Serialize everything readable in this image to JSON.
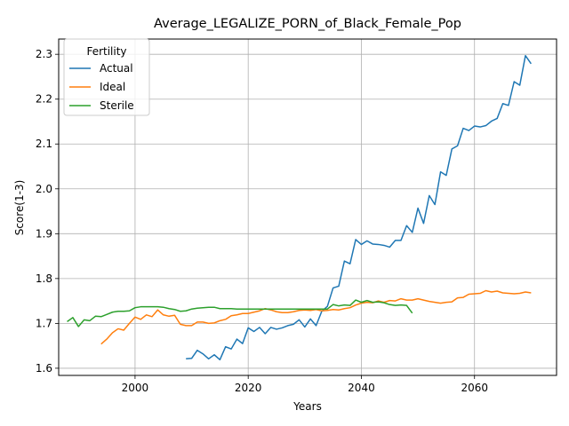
{
  "chart_data": {
    "type": "line",
    "title": "Average_LEGALIZE_PORN_of_Black_Female_Pop",
    "xlabel": "Years",
    "ylabel": "Score(1-3)",
    "xlim": [
      1986.5,
      2074.5
    ],
    "ylim": [
      1.584,
      2.334
    ],
    "xticks": [
      2000,
      2020,
      2040,
      2060
    ],
    "yticks": [
      1.6,
      1.7,
      1.8,
      1.9,
      2.0,
      2.1,
      2.2,
      2.3
    ],
    "grid": true,
    "legend": {
      "title": "Fertility",
      "placement": "top-left"
    },
    "series": [
      {
        "name": "Actual",
        "color": "#1f77b4",
        "x": [
          2009,
          2010,
          2011,
          2012,
          2013,
          2014,
          2015,
          2016,
          2017,
          2018,
          2019,
          2020,
          2021,
          2022,
          2023,
          2024,
          2025,
          2026,
          2027,
          2028,
          2029,
          2030,
          2031,
          2032,
          2033,
          2034,
          2035,
          2036,
          2037,
          2038,
          2039,
          2040,
          2041,
          2042,
          2043,
          2044,
          2045,
          2046,
          2047,
          2048,
          2049,
          2050,
          2051,
          2052,
          2053,
          2054,
          2055,
          2056,
          2057,
          2058,
          2059,
          2060,
          2061,
          2062,
          2063,
          2064,
          2065,
          2066,
          2067,
          2068,
          2069,
          2070
        ],
        "values": [
          1.621,
          1.622,
          1.64,
          1.632,
          1.621,
          1.63,
          1.619,
          1.648,
          1.643,
          1.665,
          1.655,
          1.69,
          1.682,
          1.691,
          1.677,
          1.691,
          1.687,
          1.69,
          1.695,
          1.698,
          1.708,
          1.692,
          1.71,
          1.695,
          1.727,
          1.738,
          1.779,
          1.783,
          1.839,
          1.833,
          1.887,
          1.876,
          1.884,
          1.877,
          1.876,
          1.874,
          1.87,
          1.885,
          1.885,
          1.918,
          1.903,
          1.957,
          1.923,
          1.985,
          1.965,
          2.038,
          2.03,
          2.089,
          2.096,
          2.135,
          2.13,
          2.14,
          2.138,
          2.141,
          2.151,
          2.157,
          2.19,
          2.186,
          2.239,
          2.231,
          2.297,
          2.279
        ]
      },
      {
        "name": "Ideal",
        "color": "#ff7f0e",
        "x": [
          1994,
          1995,
          1996,
          1997,
          1998,
          1999,
          2000,
          2001,
          2002,
          2003,
          2004,
          2005,
          2006,
          2007,
          2008,
          2009,
          2010,
          2011,
          2012,
          2013,
          2014,
          2015,
          2016,
          2017,
          2018,
          2019,
          2020,
          2021,
          2022,
          2023,
          2024,
          2025,
          2026,
          2027,
          2028,
          2029,
          2030,
          2031,
          2032,
          2033,
          2034,
          2035,
          2036,
          2037,
          2038,
          2039,
          2040,
          2041,
          2042,
          2043,
          2044,
          2045,
          2046,
          2047,
          2048,
          2049,
          2050,
          2051,
          2052,
          2053,
          2054,
          2055,
          2056,
          2057,
          2058,
          2059,
          2060,
          2061,
          2062,
          2063,
          2064,
          2065,
          2066,
          2067,
          2068,
          2069,
          2070
        ],
        "values": [
          1.654,
          1.665,
          1.679,
          1.688,
          1.685,
          1.7,
          1.714,
          1.709,
          1.719,
          1.715,
          1.73,
          1.719,
          1.716,
          1.718,
          1.698,
          1.695,
          1.695,
          1.703,
          1.703,
          1.7,
          1.701,
          1.706,
          1.709,
          1.717,
          1.719,
          1.722,
          1.722,
          1.725,
          1.728,
          1.733,
          1.73,
          1.726,
          1.724,
          1.724,
          1.726,
          1.729,
          1.73,
          1.729,
          1.731,
          1.728,
          1.729,
          1.731,
          1.73,
          1.733,
          1.735,
          1.741,
          1.745,
          1.747,
          1.746,
          1.75,
          1.747,
          1.751,
          1.75,
          1.755,
          1.752,
          1.752,
          1.755,
          1.752,
          1.749,
          1.747,
          1.745,
          1.747,
          1.748,
          1.757,
          1.758,
          1.765,
          1.766,
          1.767,
          1.773,
          1.77,
          1.772,
          1.768,
          1.767,
          1.766,
          1.767,
          1.77,
          1.768
        ]
      },
      {
        "name": "Sterile",
        "color": "#2ca02c",
        "x": [
          1988,
          1989,
          1990,
          1991,
          1992,
          1993,
          1994,
          1995,
          1996,
          1997,
          1998,
          1999,
          2000,
          2001,
          2002,
          2003,
          2004,
          2005,
          2006,
          2007,
          2008,
          2009,
          2010,
          2011,
          2012,
          2013,
          2014,
          2015,
          2016,
          2017,
          2018,
          2019,
          2020,
          2021,
          2022,
          2023,
          2024,
          2025,
          2026,
          2027,
          2028,
          2029,
          2030,
          2031,
          2032,
          2033,
          2034,
          2035,
          2036,
          2037,
          2038,
          2039,
          2040,
          2041,
          2042,
          2043,
          2044,
          2045,
          2046,
          2047,
          2048,
          2049
        ],
        "values": [
          1.704,
          1.713,
          1.693,
          1.708,
          1.706,
          1.716,
          1.715,
          1.72,
          1.725,
          1.727,
          1.727,
          1.728,
          1.735,
          1.737,
          1.737,
          1.737,
          1.737,
          1.736,
          1.733,
          1.731,
          1.727,
          1.728,
          1.732,
          1.734,
          1.735,
          1.736,
          1.736,
          1.733,
          1.733,
          1.733,
          1.732,
          1.732,
          1.732,
          1.732,
          1.732,
          1.732,
          1.732,
          1.732,
          1.732,
          1.732,
          1.732,
          1.732,
          1.732,
          1.732,
          1.732,
          1.732,
          1.732,
          1.742,
          1.739,
          1.741,
          1.74,
          1.752,
          1.747,
          1.751,
          1.747,
          1.748,
          1.746,
          1.742,
          1.74,
          1.741,
          1.74,
          1.723
        ]
      }
    ]
  }
}
